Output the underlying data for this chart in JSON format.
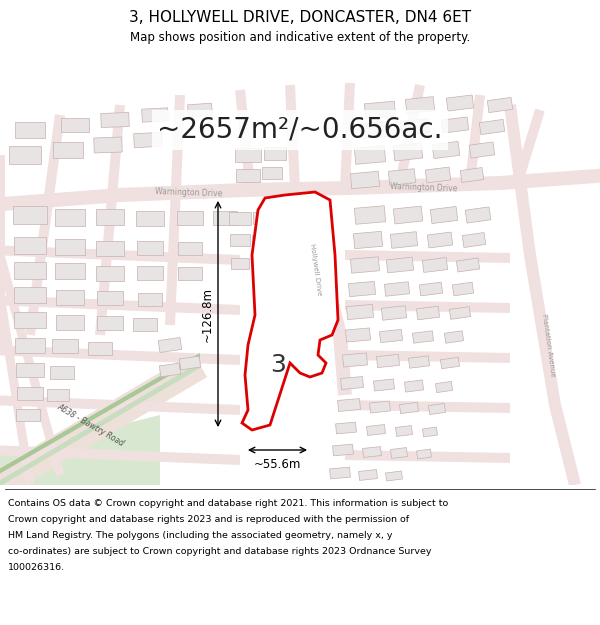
{
  "title": "3, HOLLYWELL DRIVE, DONCASTER, DN4 6ET",
  "subtitle": "Map shows position and indicative extent of the property.",
  "area_text": "~2657m²/~0.656ac.",
  "dim_width": "~55.6m",
  "dim_height": "~126.8m",
  "label_number": "3",
  "footer_lines": [
    "Contains OS data © Crown copyright and database right 2021. This information is subject to",
    "Crown copyright and database rights 2023 and is reproduced with the permission of",
    "HM Land Registry. The polygons (including the associated geometry, namely x, y",
    "co-ordinates) are subject to Crown copyright and database rights 2023 Ordnance Survey",
    "100026316."
  ],
  "map_bg": "#f7f0f0",
  "road_fill": "#f0e0e0",
  "highlight_color": "#dd0000",
  "plot_fill": "#ffffff",
  "road_green_fill": "#c8dcc0",
  "road_green_dark": "#a8c898",
  "building_fill": "#e8e4e4",
  "building_stroke": "#c8b0b0",
  "street_label_color": "#999999",
  "road_stroke": "#d0a8a8"
}
